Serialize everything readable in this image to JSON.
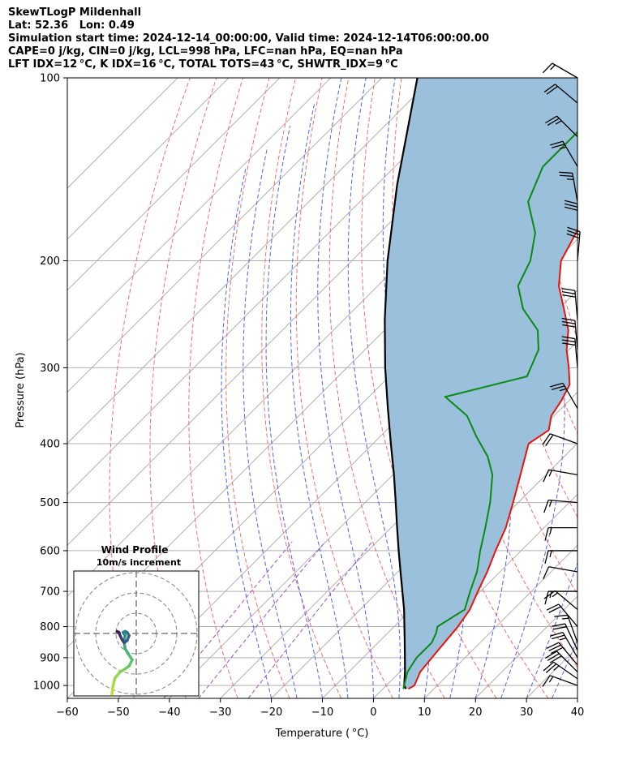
{
  "header": {
    "lines": [
      "SkewTLogP Mildenhall",
      "Lat: 52.36   Lon: 0.49",
      "Simulation start time: 2024-12-14_00:00:00, Valid time: 2024-12-14T06:00:00.00",
      "CAPE=0 j/kg, CIN=0 j/kg, LCL=998 hPa, LFC=nan hPa, EQ=nan hPa",
      "LFT IDX=12 °C, K IDX=16 °C, TOTAL TOTS=43 °C, SHWTR_IDX=9 °C"
    ]
  },
  "chart_data": {
    "type": "skew-t log-p",
    "xlabel": "Temperature ( °C)",
    "ylabel": "Pressure (hPa)",
    "xlim": [
      -60,
      40
    ],
    "ylim": [
      1050,
      100
    ],
    "x_ticks": [
      "−60",
      "−50",
      "−40",
      "−30",
      "−20",
      "−10",
      "0",
      "10",
      "20",
      "30",
      "40"
    ],
    "y_ticks": [
      1000,
      900,
      800,
      700,
      600,
      500,
      400,
      300,
      200,
      100
    ],
    "grid": true,
    "colors": {
      "temperature": "#e8140c",
      "dewpoint": "#0a8a12",
      "parcel": "#000000",
      "cape_shading": "#9bc0dc",
      "dry_adiabats": "#f26b6b",
      "moist_adiabats": "#4f61f2",
      "mixing_ratio": "#a050c8"
    },
    "series": [
      {
        "name": "Temperature",
        "points": [
          [
            1013,
            5.0
          ],
          [
            1000,
            5.5
          ],
          [
            950,
            4.0
          ],
          [
            900,
            3.5
          ],
          [
            850,
            3.0
          ],
          [
            800,
            2.5
          ],
          [
            750,
            1.5
          ],
          [
            700,
            -0.5
          ],
          [
            650,
            -2.5
          ],
          [
            600,
            -5.0
          ],
          [
            550,
            -7.5
          ],
          [
            500,
            -11.0
          ],
          [
            450,
            -15.0
          ],
          [
            400,
            -19.5
          ],
          [
            380,
            -18.2
          ],
          [
            360,
            -20.5
          ],
          [
            340,
            -21.5
          ],
          [
            320,
            -23.0
          ],
          [
            300,
            -26.5
          ],
          [
            280,
            -30.5
          ],
          [
            260,
            -34.0
          ],
          [
            240,
            -39.0
          ],
          [
            220,
            -44.5
          ],
          [
            200,
            -49.0
          ],
          [
            180,
            -51.5
          ],
          [
            160,
            -55.0
          ],
          [
            140,
            -59.0
          ],
          [
            120,
            -63.0
          ],
          [
            100,
            -66.0
          ]
        ]
      },
      {
        "name": "Dewpoint",
        "points": [
          [
            1013,
            4.0
          ],
          [
            1000,
            3.5
          ],
          [
            950,
            1.5
          ],
          [
            900,
            0.5
          ],
          [
            850,
            0.5
          ],
          [
            820,
            -0.5
          ],
          [
            800,
            -1.5
          ],
          [
            750,
            0.5
          ],
          [
            700,
            -2.0
          ],
          [
            650,
            -4.5
          ],
          [
            600,
            -8.0
          ],
          [
            550,
            -11.5
          ],
          [
            500,
            -15.5
          ],
          [
            450,
            -20.5
          ],
          [
            420,
            -25.0
          ],
          [
            390,
            -31.0
          ],
          [
            360,
            -37.0
          ],
          [
            335,
            -45.0
          ],
          [
            310,
            -33.0
          ],
          [
            280,
            -36.0
          ],
          [
            260,
            -40.0
          ],
          [
            240,
            -47.0
          ],
          [
            220,
            -52.5
          ],
          [
            200,
            -55.0
          ],
          [
            180,
            -59.5
          ],
          [
            160,
            -67.0
          ],
          [
            140,
            -71.0
          ],
          [
            120,
            -71.0
          ],
          [
            100,
            -70.0
          ]
        ]
      },
      {
        "name": "Parcel",
        "points": [
          [
            1013,
            4.5
          ],
          [
            1000,
            3.5
          ],
          [
            950,
            1.0
          ],
          [
            900,
            -1.8
          ],
          [
            850,
            -4.8
          ],
          [
            800,
            -8.0
          ],
          [
            750,
            -11.4
          ],
          [
            700,
            -15.3
          ],
          [
            650,
            -19.5
          ],
          [
            600,
            -24.0
          ],
          [
            550,
            -28.8
          ],
          [
            500,
            -34.0
          ],
          [
            450,
            -39.8
          ],
          [
            400,
            -46.5
          ],
          [
            350,
            -54.0
          ],
          [
            300,
            -62.5
          ],
          [
            250,
            -72.0
          ],
          [
            200,
            -83.0
          ],
          [
            150,
            -96.0
          ],
          [
            100,
            -113.0
          ]
        ]
      }
    ],
    "wind_barbs": [
      {
        "p": 1000,
        "direction_deg": 290,
        "speed_kt": 15
      },
      {
        "p": 975,
        "direction_deg": 305,
        "speed_kt": 25
      },
      {
        "p": 950,
        "direction_deg": 315,
        "speed_kt": 30
      },
      {
        "p": 925,
        "direction_deg": 320,
        "speed_kt": 30
      },
      {
        "p": 900,
        "direction_deg": 330,
        "speed_kt": 25
      },
      {
        "p": 875,
        "direction_deg": 335,
        "speed_kt": 20
      },
      {
        "p": 850,
        "direction_deg": 340,
        "speed_kt": 15
      },
      {
        "p": 800,
        "direction_deg": 320,
        "speed_kt": 20
      },
      {
        "p": 750,
        "direction_deg": 310,
        "speed_kt": 15
      },
      {
        "p": 700,
        "direction_deg": 270,
        "speed_kt": 15
      },
      {
        "p": 650,
        "direction_deg": 280,
        "speed_kt": 10
      },
      {
        "p": 600,
        "direction_deg": 270,
        "speed_kt": 15
      },
      {
        "p": 550,
        "direction_deg": 270,
        "speed_kt": 15
      },
      {
        "p": 500,
        "direction_deg": 275,
        "speed_kt": 15
      },
      {
        "p": 450,
        "direction_deg": 280,
        "speed_kt": 15
      },
      {
        "p": 400,
        "direction_deg": 290,
        "speed_kt": 20
      },
      {
        "p": 350,
        "direction_deg": 330,
        "speed_kt": 25
      },
      {
        "p": 300,
        "direction_deg": 355,
        "speed_kt": 30
      },
      {
        "p": 280,
        "direction_deg": 355,
        "speed_kt": 30
      },
      {
        "p": 250,
        "direction_deg": 355,
        "speed_kt": 30
      },
      {
        "p": 200,
        "direction_deg": 5,
        "speed_kt": 30
      },
      {
        "p": 180,
        "direction_deg": 360,
        "speed_kt": 30
      },
      {
        "p": 160,
        "direction_deg": 350,
        "speed_kt": 25
      },
      {
        "p": 140,
        "direction_deg": 330,
        "speed_kt": 25
      },
      {
        "p": 125,
        "direction_deg": 315,
        "speed_kt": 25
      },
      {
        "p": 110,
        "direction_deg": 310,
        "speed_kt": 20
      },
      {
        "p": 100,
        "direction_deg": 300,
        "speed_kt": 15
      }
    ],
    "inset": {
      "title": "Wind Profile",
      "subtitle": "10m/s increment",
      "ring_step_ms": 10,
      "hodograph_uv": [
        [
          -12.0,
          -30.0
        ],
        [
          -11.5,
          -26.0
        ],
        [
          -10.5,
          -22.0
        ],
        [
          -8.0,
          -19.0
        ],
        [
          -5.5,
          -17.5
        ],
        [
          -3.5,
          -16.0
        ],
        [
          -2.0,
          -13.0
        ],
        [
          -4.0,
          -10.0
        ],
        [
          -5.5,
          -7.5
        ],
        [
          -6.0,
          -4.0
        ],
        [
          -5.5,
          -1.0
        ],
        [
          -6.5,
          0.5
        ],
        [
          -5.5,
          1.0
        ],
        [
          -4.5,
          0.5
        ],
        [
          -3.5,
          -1.0
        ],
        [
          -4.5,
          -3.5
        ],
        [
          -6.0,
          -4.5
        ],
        [
          -7.0,
          -3.0
        ],
        [
          -8.0,
          -1.0
        ],
        [
          -8.5,
          0.5
        ],
        [
          -9.5,
          1.0
        ]
      ]
    }
  }
}
